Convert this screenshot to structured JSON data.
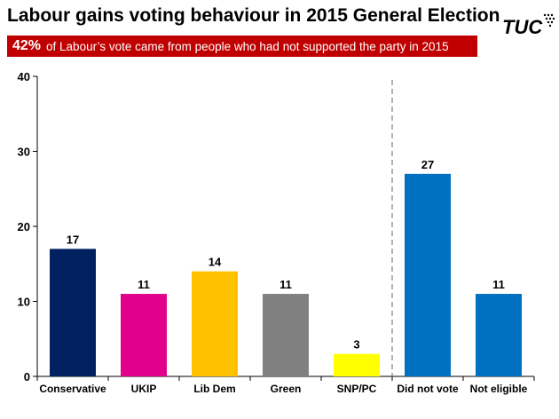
{
  "header": {
    "title": "Labour gains voting behaviour in 2015 General Election",
    "logo_text": "TUC"
  },
  "banner": {
    "percent": "42%",
    "text": "of Labour’s vote came from people who had not supported the party in 2015"
  },
  "chart_data": {
    "type": "bar",
    "categories": [
      "Conservative",
      "UKIP",
      "Lib Dem",
      "Green",
      "SNP/PC",
      "Did not vote",
      "Not eligible"
    ],
    "values": [
      17,
      11,
      14,
      11,
      3,
      27,
      11
    ],
    "colors": [
      "#002060",
      "#e0008c",
      "#ffc000",
      "#808080",
      "#ffff00",
      "#0070c0",
      "#0070c0"
    ],
    "ylim": [
      0,
      40
    ],
    "yticks": [
      0,
      10,
      20,
      30,
      40
    ],
    "data_labels": true,
    "divider_after_category": "SNP/PC",
    "grid": false,
    "legend": "none"
  }
}
